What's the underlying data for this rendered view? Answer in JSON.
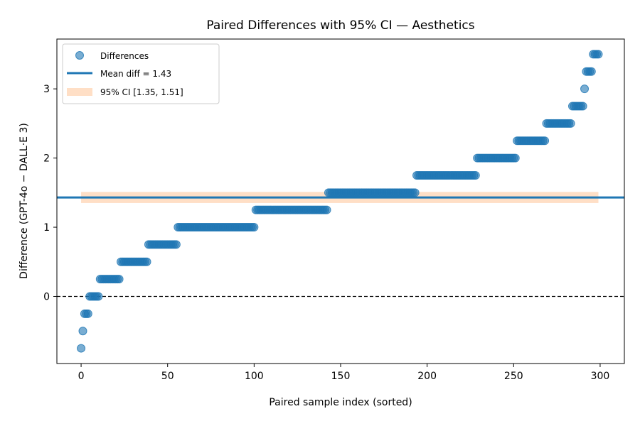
{
  "chart_data": {
    "type": "scatter",
    "title": "Paired Differences with 95% CI — Aesthetics",
    "xlabel": "Paired sample index (sorted)",
    "ylabel": "Difference (GPT-4o − DALL·E 3)",
    "xlim": [
      -14,
      314
    ],
    "ylim": [
      -0.97,
      3.72
    ],
    "xticks": [
      0,
      50,
      100,
      150,
      200,
      250,
      300
    ],
    "yticks": [
      0,
      1,
      2,
      3
    ],
    "grid": false,
    "legend_position": "upper-left",
    "colors": {
      "points": "#1f77b4",
      "mean_line": "#1f77b4",
      "ci_band": "#ffdcc0",
      "zero_line": "#000000"
    },
    "mean_diff": 1.43,
    "ci": [
      1.35,
      1.51
    ],
    "zero_line": 0,
    "legend": {
      "differences": "Differences",
      "mean": "Mean diff = 1.43",
      "ci": "95% CI [1.35, 1.51]"
    },
    "series": [
      {
        "name": "Differences",
        "runs": [
          {
            "y": -0.75,
            "x_start": 0,
            "x_end": 0
          },
          {
            "y": -0.5,
            "x_start": 1,
            "x_end": 1
          },
          {
            "y": -0.25,
            "x_start": 2,
            "x_end": 4
          },
          {
            "y": 0.0,
            "x_start": 5,
            "x_end": 10
          },
          {
            "y": 0.25,
            "x_start": 11,
            "x_end": 22
          },
          {
            "y": 0.5,
            "x_start": 23,
            "x_end": 38
          },
          {
            "y": 0.75,
            "x_start": 39,
            "x_end": 55
          },
          {
            "y": 1.0,
            "x_start": 56,
            "x_end": 100
          },
          {
            "y": 1.25,
            "x_start": 101,
            "x_end": 142
          },
          {
            "y": 1.5,
            "x_start": 143,
            "x_end": 193
          },
          {
            "y": 1.75,
            "x_start": 194,
            "x_end": 228
          },
          {
            "y": 2.0,
            "x_start": 229,
            "x_end": 251
          },
          {
            "y": 2.25,
            "x_start": 252,
            "x_end": 268
          },
          {
            "y": 2.5,
            "x_start": 269,
            "x_end": 283
          },
          {
            "y": 2.75,
            "x_start": 284,
            "x_end": 290
          },
          {
            "y": 3.0,
            "x_start": 291,
            "x_end": 291
          },
          {
            "y": 3.25,
            "x_start": 292,
            "x_end": 295
          },
          {
            "y": 3.5,
            "x_start": 296,
            "x_end": 299
          }
        ]
      }
    ]
  }
}
